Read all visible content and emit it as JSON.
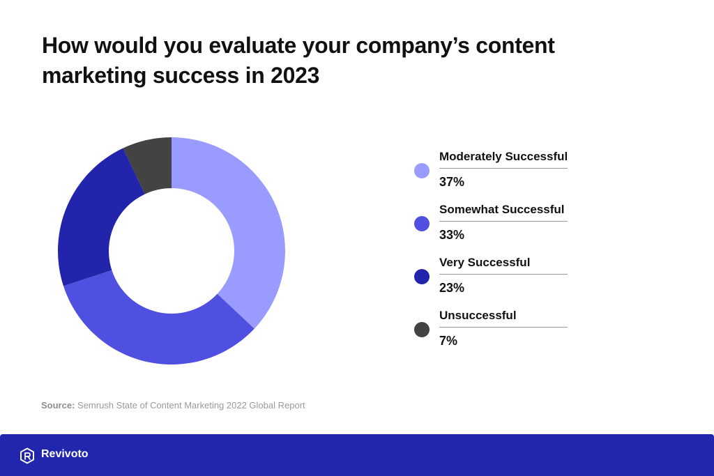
{
  "title_lines": [
    "How would you evaluate your company’s content",
    "marketing success in 2023"
  ],
  "chart_data": {
    "type": "pie",
    "variant": "donut",
    "title": "How would you evaluate your company’s content marketing success in 2023",
    "legend_position": "right",
    "categories": [
      "Moderately Successful",
      "Somewhat Successful",
      "Very Successful",
      "Unsuccessful"
    ],
    "values": [
      37,
      33,
      23,
      7
    ],
    "value_labels": [
      "37%",
      "33%",
      "23%",
      "7%"
    ],
    "colors": [
      "#9a9bff",
      "#5050e0",
      "#2224ab",
      "#434343"
    ]
  },
  "source": {
    "prefix": "Source:",
    "text": " Semrush State of Content Marketing 2022 Global Report"
  },
  "footer": {
    "brand": "Revivoto",
    "background": "#2226ad",
    "icon": "revivoto-logo-icon"
  }
}
